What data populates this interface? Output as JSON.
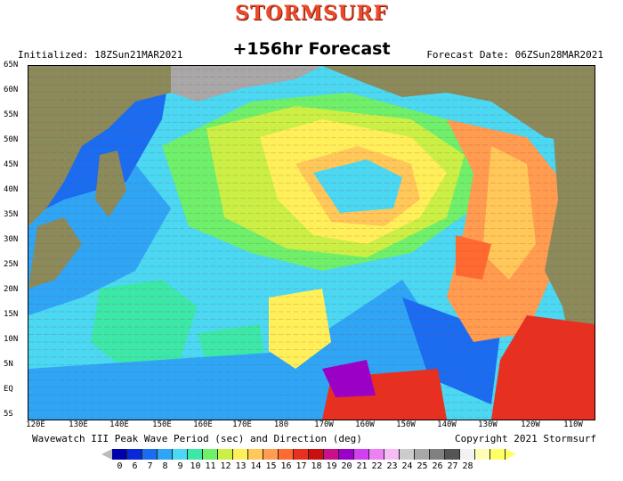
{
  "header": {
    "brand": "STORMSURF",
    "initialized": "Initialized: 18ZSun21MAR2021",
    "forecast_hour": "+156hr Forecast",
    "forecast_date": "Forecast Date: 06ZSun28MAR2021"
  },
  "footer": {
    "product": "Wavewatch III Peak Wave Period (sec) and Direction (deg)",
    "copyright": "Copyright 2021 Stormsurf"
  },
  "lat_labels": [
    "65N",
    "60N",
    "55N",
    "50N",
    "45N",
    "40N",
    "35N",
    "30N",
    "25N",
    "20N",
    "15N",
    "10N",
    "5N",
    "EQ",
    "5S"
  ],
  "lon_labels": [
    "120E",
    "130E",
    "140E",
    "150E",
    "160E",
    "170E",
    "180",
    "170W",
    "160W",
    "150W",
    "140W",
    "130W",
    "120W",
    "110W"
  ],
  "scale": {
    "colors": [
      "#0000aa",
      "#0a28d8",
      "#1a6cf0",
      "#2ea6f5",
      "#4ad8f2",
      "#3ce8a8",
      "#6ef06a",
      "#caf046",
      "#fff05a",
      "#ffc858",
      "#ff9c50",
      "#ff6a30",
      "#e83020",
      "#c81010",
      "#c8108a",
      "#9a00c8",
      "#d040f0",
      "#ee80f6",
      "#f6bcf6",
      "#cccccc",
      "#a8a8a8",
      "#808080",
      "#555555",
      "#f2f2f2",
      "#ffffb4",
      "#ffff66"
    ],
    "labels": [
      "0",
      "6",
      "7",
      "8",
      "9",
      "10",
      "11",
      "12",
      "13",
      "14",
      "15",
      "16",
      "17",
      "18",
      "19",
      "20",
      "21",
      "22",
      "23",
      "24",
      "25",
      "26",
      "27",
      "28"
    ]
  }
}
